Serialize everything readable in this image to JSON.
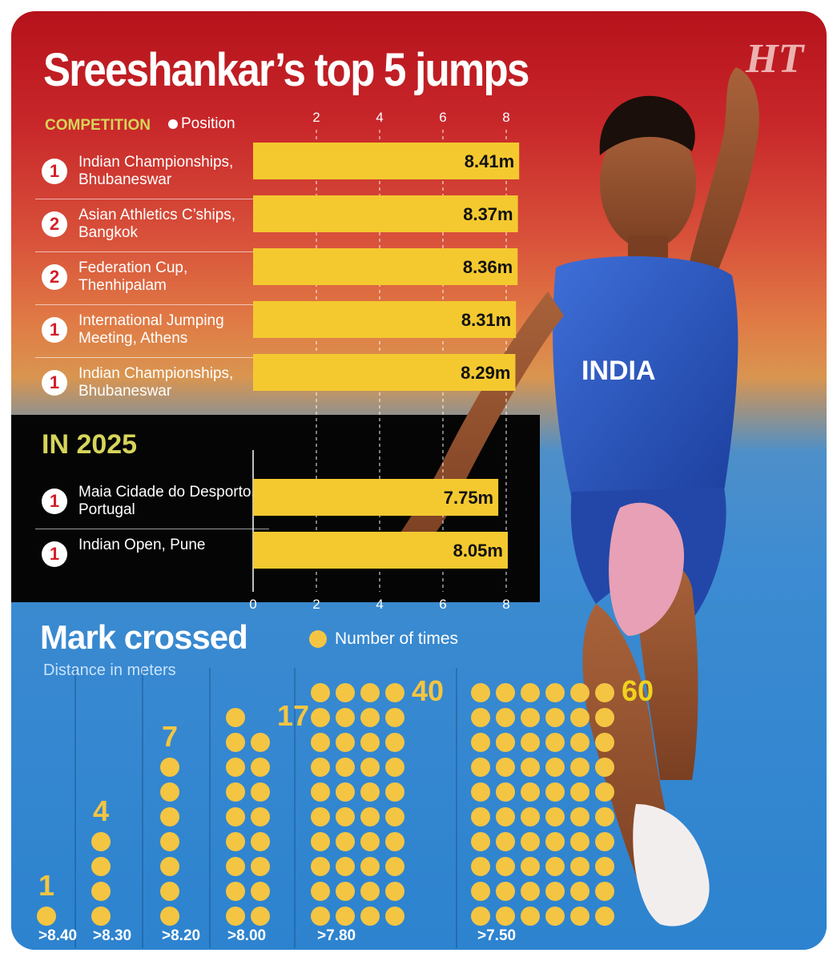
{
  "title": "Sreeshankar’s top 5 jumps",
  "logo": "HT",
  "headers": {
    "competition": "COMPETITION",
    "position": "Position"
  },
  "top5": [
    {
      "position": "1",
      "competition": "Indian Championships, Bhubaneswar",
      "value": 8.41,
      "label": "8.41m"
    },
    {
      "position": "2",
      "competition": "Asian Athletics C’ships, Bangkok",
      "value": 8.37,
      "label": "8.37m"
    },
    {
      "position": "2",
      "competition": "Federation Cup, Thenhipalam",
      "value": 8.36,
      "label": "8.36m"
    },
    {
      "position": "1",
      "competition": "International Jumping Meeting, Athens",
      "value": 8.31,
      "label": "8.31m"
    },
    {
      "position": "1",
      "competition": "Indian Championships, Bhubaneswar",
      "value": 8.29,
      "label": "8.29m"
    }
  ],
  "in2025": {
    "heading": "IN 2025",
    "rows": [
      {
        "position": "1",
        "competition": "Maia Cidade do Desporto, Portugal",
        "value": 7.75,
        "label": "7.75m"
      },
      {
        "position": "1",
        "competition": "Indian Open, Pune",
        "value": 8.05,
        "label": "8.05m"
      }
    ]
  },
  "mark_crossed": {
    "title": "Mark crossed",
    "subtitle": "Distance in meters",
    "legend": "Number of times"
  },
  "colors": {
    "bar": "#f4c930",
    "dot": "#f4c542",
    "accent": "#d6d45a",
    "badge_text": "#d2202a"
  },
  "chart_data": [
    {
      "type": "bar",
      "title": "Sreeshankar’s top 5 jumps",
      "orientation": "horizontal",
      "categories": [
        "Indian Championships, Bhubaneswar",
        "Asian Athletics C’ships, Bangkok",
        "Federation Cup, Thenhipalam",
        "International Jumping Meeting, Athens",
        "Indian Championships, Bhubaneswar"
      ],
      "values": [
        8.41,
        8.37,
        8.36,
        8.31,
        8.29
      ],
      "xlim": [
        0,
        8.5
      ],
      "xticks": [
        "2",
        "4",
        "6",
        "8"
      ],
      "grid": true
    },
    {
      "type": "bar",
      "title": "IN 2025",
      "orientation": "horizontal",
      "categories": [
        "Maia Cidade do Desporto, Portugal",
        "Indian Open, Pune"
      ],
      "values": [
        7.75,
        8.05
      ],
      "xlim": [
        0,
        8.5
      ],
      "xticks": [
        "0",
        "2",
        "4",
        "6",
        "8"
      ],
      "grid": true
    },
    {
      "type": "bar",
      "title": "Mark crossed",
      "subtitle": "Distance in meters",
      "legend": "Number of times",
      "categories": [
        ">8.40",
        ">8.30",
        ">8.20",
        ">8.00",
        ">7.80",
        ">7.50"
      ],
      "values": [
        1,
        4,
        7,
        17,
        40,
        60
      ],
      "value_labels": [
        "1",
        "4",
        "7",
        "17",
        "40",
        "60"
      ]
    }
  ]
}
